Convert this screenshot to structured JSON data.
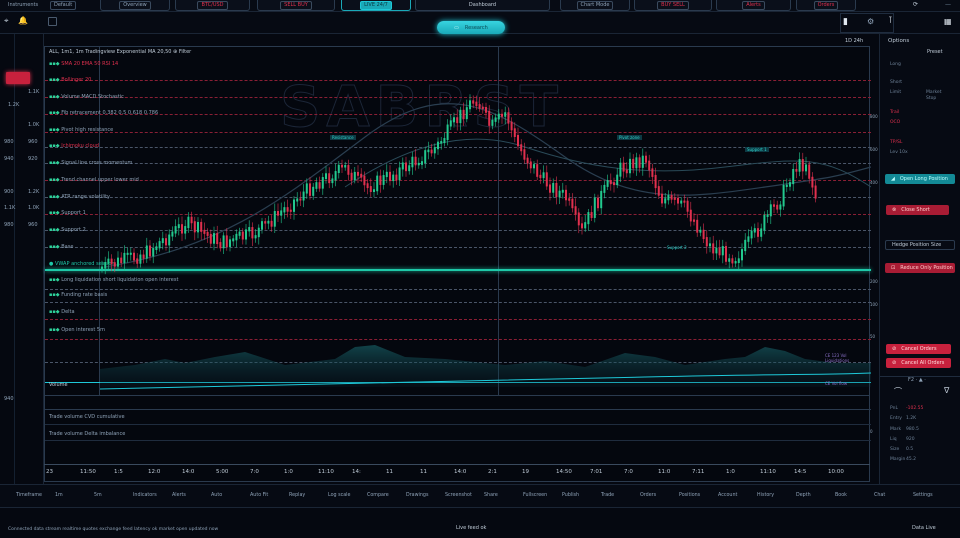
{
  "topbar": {
    "app_label": "Instruments",
    "mode_select": "Default",
    "tabs": [
      {
        "label": "Overview",
        "color": "#8fa3b8"
      },
      {
        "label": "BTC/USD",
        "color": "#e0304e"
      },
      {
        "label": "SELL BUY",
        "color": "#e0304e"
      },
      {
        "label": "LIVE 24/7",
        "color": "#2ed1c9",
        "active": true
      },
      {
        "label": "Dashboard",
        "color": "#c0ccd8"
      },
      {
        "label": "Chart Mode",
        "color": "#8fa3b8"
      },
      {
        "label": "BUY SELL",
        "color": "#e0304e"
      },
      {
        "label": "Alerts",
        "color": "#e0304e"
      },
      {
        "label": "Orders",
        "color": "#e0304e"
      }
    ]
  },
  "toolbar": {
    "primary_button": "Research",
    "right_icons": [
      "bookmark-icon",
      "settings-icon",
      "pin-icon",
      "layout-icon"
    ]
  },
  "chart": {
    "watermark": "SABRST",
    "header_text": "ALL, 1m1, 1m  Tradingview  Exponential MA 20,50  ⊕  Filter",
    "header_right": "1D  24h",
    "annotations": [
      "Resistance",
      "Pivot zone",
      "Support 1",
      "Support 2"
    ],
    "rows": [
      {
        "label": "SMA 20  EMA 50  RSI 14",
        "color": "red"
      },
      {
        "label": "Bollinger 20",
        "color": "red"
      },
      {
        "label": "Volume  MACD  Stochastic",
        "color": "grey"
      },
      {
        "label": "Fib retracement  0.382  0.5  0.618  0.786",
        "color": "red"
      },
      {
        "label": "Pivot high  resistance",
        "color": "grey"
      },
      {
        "label": "Ichimoku  cloud",
        "color": "red"
      },
      {
        "label": "Signal line cross  momentum",
        "color": "red"
      },
      {
        "label": "Trend channel  upper  lower  mid",
        "color": "grey"
      },
      {
        "label": "ATR  range  volatility",
        "color": "grey"
      },
      {
        "label": "Support 1",
        "color": "grey"
      },
      {
        "label": "Support 2",
        "color": "grey"
      },
      {
        "label": "Base",
        "color": "teal"
      },
      {
        "label": "VWAP  anchored  session",
        "color": "grey"
      },
      {
        "label": "Long liquidation  short liquidation  open interest",
        "color": "grey"
      },
      {
        "label": "Funding rate  basis",
        "color": "red"
      },
      {
        "label": "Delta",
        "color": "grey"
      },
      {
        "label": "Open  interest  5m",
        "color": "grey"
      }
    ],
    "left_values": [
      "1.2K",
      "1.1K",
      "1.0K",
      "980",
      "960",
      "940",
      "920",
      "900"
    ],
    "right_values": [
      "800",
      "600",
      "400",
      "200",
      "100",
      "50",
      "0"
    ]
  },
  "lower_panel": {
    "rows": [
      "Trade volume  CVD  cumulative",
      "Trade volume  Delta imbalance",
      "Volume"
    ],
    "label_overlay": "CE  123  Vol  Liquidations",
    "label_overlay2": "CE  Vol flow"
  },
  "xaxis": {
    "ticks": [
      "23",
      "11:50",
      "1:5",
      "12:0",
      "14:0",
      "5:00",
      "7:0",
      "1:0",
      "11:10",
      "14:",
      "11",
      "11",
      "14:0",
      "2:1",
      "19",
      "14:50",
      "7:01",
      "7:0",
      "11:0",
      "7:11",
      "1:0",
      "11:10",
      "14:5",
      "10:00"
    ]
  },
  "right_panel": {
    "title": "Options",
    "subtitle": "Preset",
    "items": [
      "Long",
      "Short",
      "Limit",
      "Market",
      "Stop",
      "Trail",
      "OCO",
      "TP/SL",
      "Lev 10x"
    ],
    "buttons": [
      {
        "label": "Open Long Position",
        "color": "#1aa9b8"
      },
      {
        "label": "Close Short",
        "color": "#c8213d"
      },
      {
        "label": "Hedge Position Size",
        "color": "#0a0f1a"
      },
      {
        "label": "Reduce Only Position",
        "color": "#c8213d"
      },
      {
        "label": "Cancel Orders",
        "color": "#c8213d"
      },
      {
        "label": "Cancel All Orders",
        "color": "#c8213d"
      }
    ],
    "stats": [
      {
        "label": "PnL",
        "value": "-102.55",
        "color": "#e0304e"
      },
      {
        "label": "Entry",
        "value": "1.2K"
      },
      {
        "label": "Mark",
        "value": "980.5"
      },
      {
        "label": "Liq",
        "value": "920"
      },
      {
        "label": "Size",
        "value": "0.5"
      },
      {
        "label": "Margin",
        "value": "45.2"
      }
    ]
  },
  "bottombar": {
    "items": [
      "Timeframe",
      "1m",
      "5m",
      "Indicators",
      "Alerts",
      "Auto",
      "Auto Fit",
      "Replay",
      "Log scale",
      "Compare",
      "Drawings",
      "Screenshot",
      "Share",
      "Fullscreen",
      "Publish",
      "Trade",
      "Orders",
      "Positions",
      "Account",
      "History",
      "Depth",
      "Book",
      "Chat",
      "Settings"
    ]
  },
  "statusbar": {
    "left": "Connected data stream  realtime quotes  exchange feed  latency ok  market open  updated now",
    "center": "Live feed ok",
    "right": "Data  Live"
  }
}
